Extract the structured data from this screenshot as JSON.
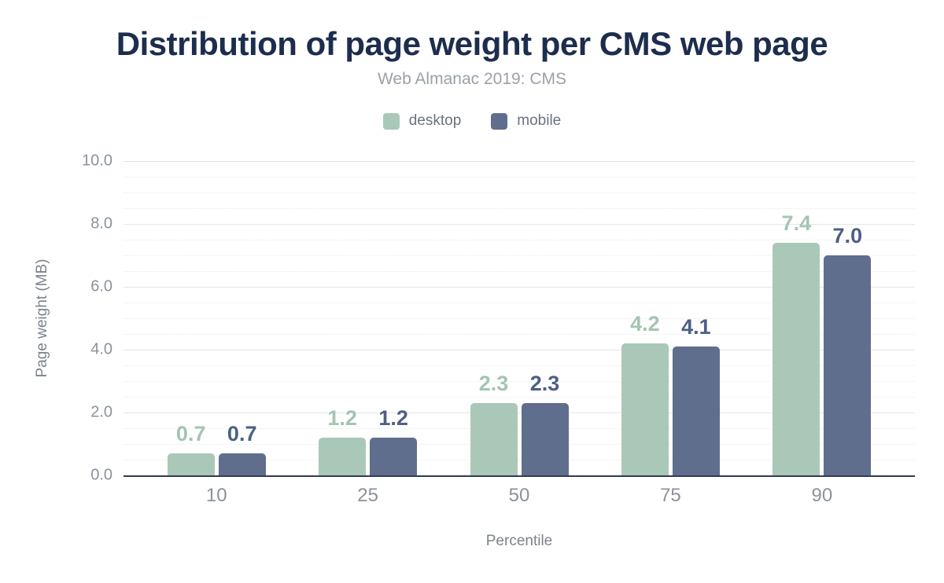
{
  "header": {
    "title": "Distribution of page weight per CMS web page",
    "subtitle": "Web Almanac 2019: CMS"
  },
  "colors": {
    "title_text": "#1d2d4d",
    "subtitle_text": "#9aa1a8",
    "axis_text": "#8b929b",
    "axis_title_text": "#7b838d",
    "baseline": "#2e3b55",
    "major_gridline": "#e2e5e8",
    "minor_gridline": "#ececee",
    "desktop": "#aac8b7",
    "mobile": "#5f6e8c"
  },
  "chart_data": {
    "type": "bar",
    "title": "Distribution of page weight per CMS web page",
    "subtitle": "Web Almanac 2019: CMS",
    "categories": [
      "10",
      "25",
      "50",
      "75",
      "90"
    ],
    "series": [
      {
        "name": "desktop",
        "color": "#aac8b7",
        "label_color": "#a3c5b1",
        "values": [
          0.7,
          1.2,
          2.3,
          4.2,
          7.4
        ]
      },
      {
        "name": "mobile",
        "color": "#5f6e8c",
        "label_color": "#4d5f84",
        "values": [
          0.7,
          1.2,
          2.3,
          4.1,
          7.0
        ]
      }
    ],
    "xlabel": "Percentile",
    "ylabel": "Page weight (MB)",
    "ylim": [
      0,
      10
    ],
    "y_major_step": 2,
    "y_minor_step": 0.5,
    "y_tick_format": "one-decimal",
    "grid": true,
    "legend_position": "top",
    "value_labels": true
  }
}
